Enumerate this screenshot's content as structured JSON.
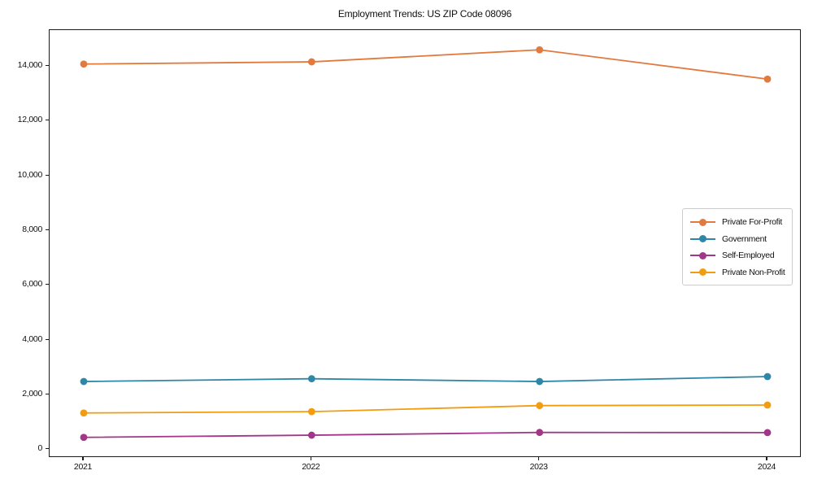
{
  "chart_data": {
    "type": "line",
    "title": "Employment Trends: US ZIP Code 08096",
    "categories": [
      "2021",
      "2022",
      "2023",
      "2024"
    ],
    "series": [
      {
        "name": "Private For-Profit",
        "color": "#e2793d",
        "values": [
          14080,
          14160,
          14600,
          13530
        ]
      },
      {
        "name": "Government",
        "color": "#2f87a8",
        "values": [
          2490,
          2590,
          2490,
          2670
        ]
      },
      {
        "name": "Self-Employed",
        "color": "#a23789",
        "values": [
          450,
          530,
          630,
          625
        ]
      },
      {
        "name": "Private Non-Profit",
        "color": "#f29c11",
        "values": [
          1340,
          1390,
          1610,
          1630
        ]
      }
    ],
    "ylim": [
      -300,
      15320
    ],
    "yticks": [
      {
        "value": 0,
        "label": "0"
      },
      {
        "value": 2000,
        "label": "2,000"
      },
      {
        "value": 4000,
        "label": "4,000"
      },
      {
        "value": 6000,
        "label": "6,000"
      },
      {
        "value": 8000,
        "label": "8,000"
      },
      {
        "value": 10000,
        "label": "10,000"
      },
      {
        "value": 12000,
        "label": "12,000"
      },
      {
        "value": 14000,
        "label": "14,000"
      }
    ],
    "xlabel": "",
    "ylabel": "",
    "grid": false,
    "legend_position": "center right"
  }
}
